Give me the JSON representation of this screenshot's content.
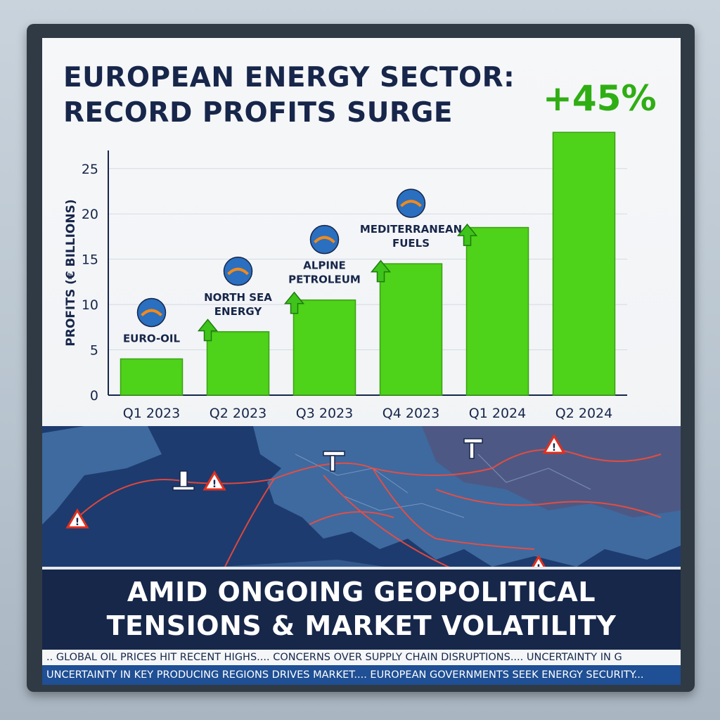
{
  "headline": {
    "line1": "EUROPEAN ENERGY SECTOR:",
    "line2": "RECORD PROFITS SURGE",
    "change": "+45%"
  },
  "chart_data": {
    "type": "bar",
    "categories": [
      "Q1 2023",
      "Q2 2023",
      "Q3 2023",
      "Q4 2023",
      "Q1 2024",
      "Q2 2024"
    ],
    "values": [
      4,
      7,
      10.5,
      14.5,
      18.5,
      29
    ],
    "ylabel": "PROFITS (€ BILLIONS)",
    "yticks": [
      0,
      5,
      10,
      15,
      20,
      25
    ],
    "ylim": [
      0,
      27
    ],
    "grid": true,
    "bar_color": "#4ed21a",
    "annotations": [
      {
        "label_lines": [
          "EURO-OIL"
        ],
        "logo": "euro-oil-logo"
      },
      {
        "label_lines": [
          "NORTH SEA",
          "ENERGY"
        ],
        "logo": "water-drop-logo"
      },
      {
        "label_lines": [
          "ALPINE",
          "PETROLEUM"
        ],
        "logo": "mountain-logo"
      },
      {
        "label_lines": [
          "MEDITERRANEAN",
          "FUELS"
        ],
        "logo": "wave-flame-logo"
      }
    ]
  },
  "banner": {
    "line1": "AMID ONGOING GEOPOLITICAL",
    "line2": "TENSIONS & MARKET VOLATILITY"
  },
  "ticker": {
    "line1": ".. GLOBAL OIL PRICES HIT RECENT HIGHS.... CONCERNS OVER SUPPLY CHAIN DISRUPTIONS.... UNCERTAINTY IN G",
    "line2": "UNCERTAINTY IN KEY PRODUCING REGIONS DRIVES MARKET.... EUROPEAN GOVERNMENTS SEEK ENERGY SECURITY..."
  },
  "colors": {
    "navy": "#17264a",
    "green_text": "#2fae14",
    "bar": "#4ed21a",
    "warning": "#e0301e",
    "map_ocean": "#1d3b6e",
    "map_land": "#3e6aa0"
  }
}
